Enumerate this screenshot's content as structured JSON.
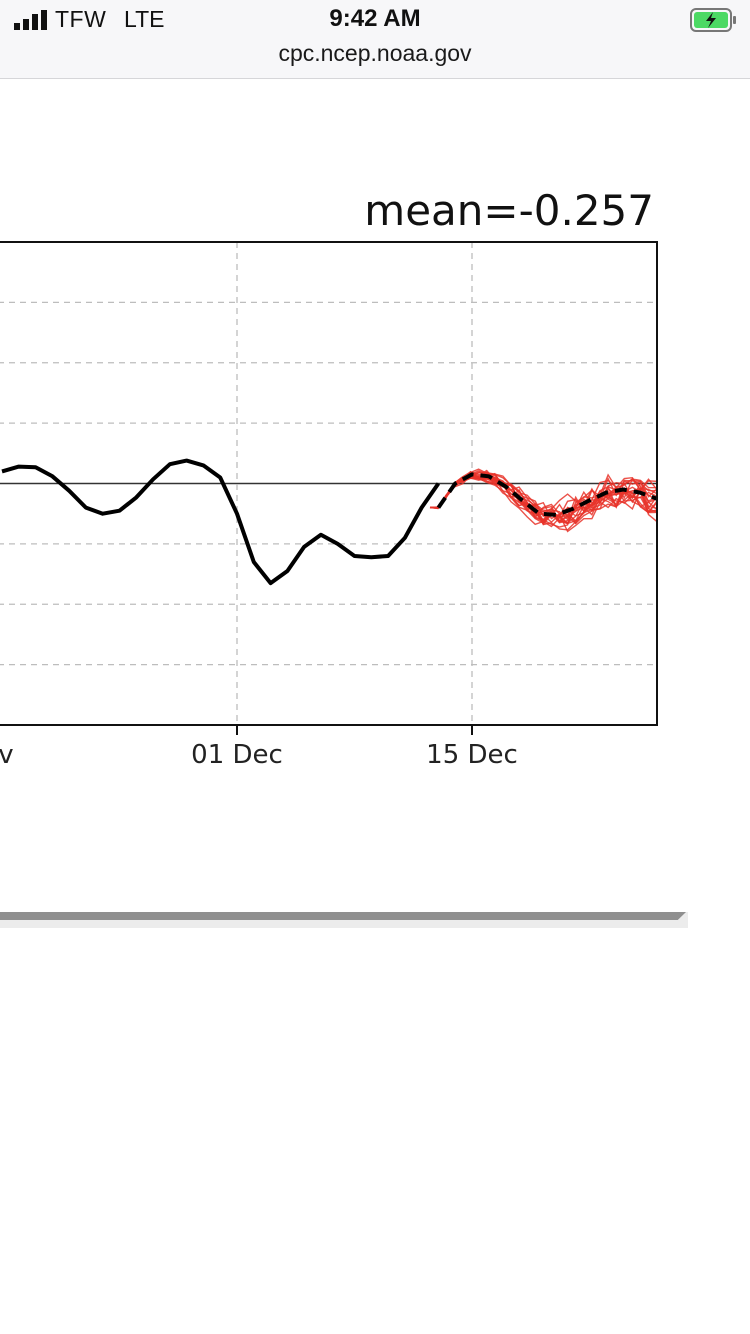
{
  "status_bar": {
    "carrier": "TFW",
    "network": "LTE",
    "time": "9:42 AM",
    "battery_state": "charging",
    "battery_color": "#4cd964"
  },
  "browser": {
    "url": "cpc.ncep.noaa.gov"
  },
  "chart": {
    "title": "mean=-0.257",
    "x_tick_labels": [
      "v",
      "01 Dec",
      "15 Dec"
    ]
  },
  "chart_data": {
    "type": "line",
    "title": "mean=-0.257",
    "xlabel": "",
    "ylabel": "",
    "grid": true,
    "x_range": [
      "2020-11-17",
      "2020-12-26"
    ],
    "y_range": [
      -4,
      4
    ],
    "x_ticks": [
      "01 Dec",
      "15 Dec"
    ],
    "zero_line": true,
    "colors": {
      "observed": "#000000",
      "ensemble": "#e8342a",
      "ensemble_mean": "#000000"
    },
    "series": [
      {
        "style": "solid-black",
        "x": [
          "2020-11-17",
          "2020-11-18",
          "2020-11-19",
          "2020-11-20",
          "2020-11-21",
          "2020-11-22",
          "2020-11-23",
          "2020-11-24",
          "2020-11-25",
          "2020-11-26",
          "2020-11-27",
          "2020-11-28",
          "2020-11-29",
          "2020-11-30",
          "2020-12-01",
          "2020-12-02",
          "2020-12-03",
          "2020-12-04",
          "2020-12-05",
          "2020-12-06",
          "2020-12-07",
          "2020-12-08",
          "2020-12-09",
          "2020-12-10",
          "2020-12-11",
          "2020-12-12",
          "2020-12-13"
        ],
        "y": [
          0.2,
          0.28,
          0.27,
          0.12,
          -0.12,
          -0.4,
          -0.5,
          -0.45,
          -0.23,
          0.07,
          0.32,
          0.38,
          0.3,
          0.1,
          -0.5,
          -1.3,
          -1.65,
          -1.45,
          -1.05,
          -0.85,
          -1.0,
          -1.2,
          -1.22,
          -1.2,
          -0.9,
          -0.4,
          0.0
        ]
      },
      {
        "style": "dashed-black",
        "x": [
          "2020-12-13",
          "2020-12-14",
          "2020-12-15",
          "2020-12-16",
          "2020-12-17",
          "2020-12-18",
          "2020-12-19",
          "2020-12-20",
          "2020-12-21",
          "2020-12-22",
          "2020-12-23",
          "2020-12-24",
          "2020-12-25",
          "2020-12-26"
        ],
        "y": [
          -0.4,
          0.0,
          0.15,
          0.12,
          -0.05,
          -0.28,
          -0.5,
          -0.52,
          -0.42,
          -0.28,
          -0.15,
          -0.1,
          -0.15,
          -0.25
        ]
      }
    ],
    "ensemble": {
      "member_count": 20,
      "x_start": "2020-12-12",
      "x_end": "2020-12-26",
      "y_min": -1.15,
      "y_max": 0.95
    }
  },
  "scrollbar": {
    "thumb_color": "#8f8f8f",
    "track_color": "#ececec"
  }
}
